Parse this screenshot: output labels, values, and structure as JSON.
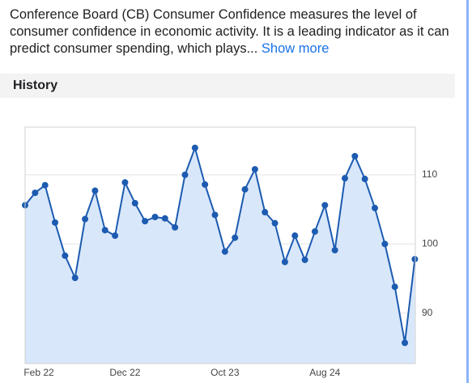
{
  "description": "Conference Board (CB) Consumer Confidence measures the level of consumer confidence in economic activity. It is a leading indicator as it can predict consumer spending, which plays...",
  "show_more": "Show more",
  "section_title": "History",
  "chart_data": {
    "type": "line",
    "categories": [
      "Feb 22",
      null,
      null,
      null,
      null,
      null,
      null,
      null,
      null,
      null,
      "Dec 22",
      null,
      null,
      null,
      null,
      null,
      null,
      null,
      null,
      null,
      "Oct 23",
      null,
      null,
      null,
      null,
      null,
      null,
      null,
      null,
      null,
      "Aug 24",
      null,
      null,
      null,
      null,
      null,
      null,
      null,
      null,
      null
    ],
    "series": [
      {
        "color": "#1c5bb0",
        "values": [
          105.6,
          107.4,
          108.5,
          103.1,
          98.3,
          95.1,
          103.6,
          107.7,
          102.0,
          101.2,
          108.9,
          105.9,
          103.3,
          103.9,
          103.7,
          102.4,
          110.0,
          113.9,
          108.6,
          104.2,
          98.9,
          100.9,
          107.9,
          110.8,
          104.6,
          103.0,
          97.4,
          101.2,
          97.7,
          101.8,
          105.6,
          99.1,
          109.5,
          112.7,
          109.4,
          105.2,
          100.0,
          93.8,
          85.7,
          97.8
        ]
      }
    ],
    "area_color": "#d9e7fb",
    "ylim": [
      82.7,
      116.9
    ],
    "yticks": [
      90,
      100,
      110
    ],
    "grid": true
  }
}
